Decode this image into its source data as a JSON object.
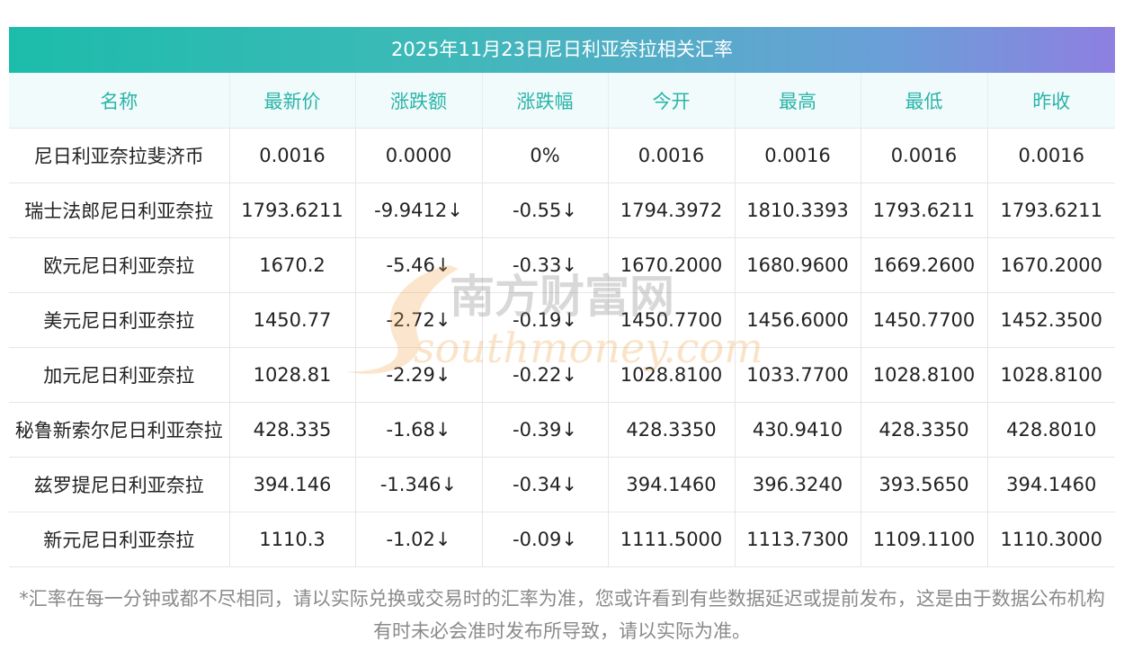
{
  "title": "2025年11月23日尼日利亚奈拉相关汇率",
  "headers": [
    "名称",
    "最新价",
    "涨跌额",
    "涨跌幅",
    "今开",
    "最高",
    "最低",
    "昨收"
  ],
  "rows": [
    {
      "name": "尼日利亚奈拉斐济币",
      "latest": "0.0016",
      "change": "0.0000",
      "change_pct": "0%",
      "open": "0.0016",
      "high": "0.0016",
      "low": "0.0016",
      "prev_close": "0.0016",
      "trend": "flat"
    },
    {
      "name": "瑞士法郎尼日利亚奈拉",
      "latest": "1793.6211",
      "change": "-9.9412↓",
      "change_pct": "-0.55↓",
      "open": "1794.3972",
      "high": "1810.3393",
      "low": "1793.6211",
      "prev_close": "1793.6211",
      "trend": "down"
    },
    {
      "name": "欧元尼日利亚奈拉",
      "latest": "1670.2",
      "change": "-5.46↓",
      "change_pct": "-0.33↓",
      "open": "1670.2000",
      "high": "1680.9600",
      "low": "1669.2600",
      "prev_close": "1670.2000",
      "trend": "down"
    },
    {
      "name": "美元尼日利亚奈拉",
      "latest": "1450.77",
      "change": "-2.72↓",
      "change_pct": "-0.19↓",
      "open": "1450.7700",
      "high": "1456.6000",
      "low": "1450.7700",
      "prev_close": "1452.3500",
      "trend": "down"
    },
    {
      "name": "加元尼日利亚奈拉",
      "latest": "1028.81",
      "change": "-2.29↓",
      "change_pct": "-0.22↓",
      "open": "1028.8100",
      "high": "1033.7700",
      "low": "1028.8100",
      "prev_close": "1028.8100",
      "trend": "down"
    },
    {
      "name": "秘鲁新索尔尼日利亚奈拉",
      "latest": "428.335",
      "change": "-1.68↓",
      "change_pct": "-0.39↓",
      "open": "428.3350",
      "high": "430.9410",
      "low": "428.3350",
      "prev_close": "428.8010",
      "trend": "down"
    },
    {
      "name": "兹罗提尼日利亚奈拉",
      "latest": "394.146",
      "change": "-1.346↓",
      "change_pct": "-0.34↓",
      "open": "394.1460",
      "high": "396.3240",
      "low": "393.5650",
      "prev_close": "394.1460",
      "trend": "down"
    },
    {
      "name": "新元尼日利亚奈拉",
      "latest": "1110.3",
      "change": "-1.02↓",
      "change_pct": "-0.09↓",
      "open": "1111.5000",
      "high": "1113.7300",
      "low": "1109.1100",
      "prev_close": "1110.3000",
      "trend": "down"
    }
  ],
  "note": "*汇率在每一分钟或都不尽相同，请以实际兑换或交易时的汇率为准，您或许看到有些数据延迟或提前发布，这是由于数据公布机构有时未必会准时发布所导致，请以实际为准。",
  "watermark": {
    "cn": "南方财富网",
    "en": "southmoney.com"
  },
  "colors": {
    "header_text": "#2ab4a8",
    "down": "#1a8a1a",
    "banner_start": "#1cbcab",
    "banner_end": "#8e7fe0"
  }
}
